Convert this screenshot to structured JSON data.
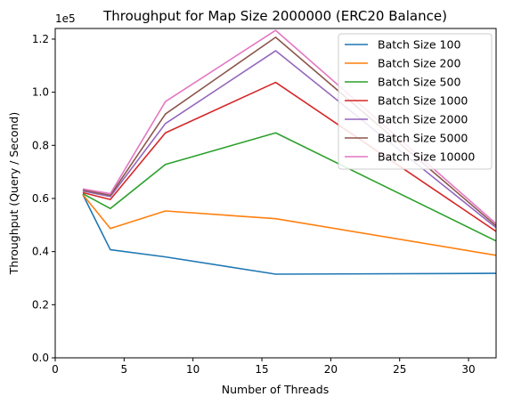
{
  "chart_data": {
    "type": "line",
    "title": "Throughput for Map Size 2000000 (ERC20 Balance)",
    "xlabel": "Number of Threads",
    "ylabel": "Throughput (Query / Second)",
    "y_offset_label": "1e5",
    "xlim": [
      0,
      32
    ],
    "ylim": [
      0,
      1.24
    ],
    "x_ticks": [
      "0",
      "5",
      "10",
      "15",
      "20",
      "25",
      "30"
    ],
    "y_ticks": [
      "0.0",
      "0.2",
      "0.4",
      "0.6",
      "0.8",
      "1.0",
      "1.2"
    ],
    "legend_position": "top-right",
    "grid": false,
    "x": [
      2,
      4,
      8,
      16,
      32
    ],
    "series": [
      {
        "name": "Batch Size 100",
        "color": "#1f77b4",
        "values": [
          0.615,
          0.407,
          0.38,
          0.315,
          0.318
        ]
      },
      {
        "name": "Batch Size 200",
        "color": "#ff7f0e",
        "values": [
          0.615,
          0.487,
          0.553,
          0.524,
          0.386
        ]
      },
      {
        "name": "Batch Size 500",
        "color": "#2ca02c",
        "values": [
          0.618,
          0.562,
          0.728,
          0.847,
          0.44
        ]
      },
      {
        "name": "Batch Size 1000",
        "color": "#d62728",
        "values": [
          0.622,
          0.596,
          0.847,
          1.037,
          0.476
        ]
      },
      {
        "name": "Batch Size 2000",
        "color": "#9467bd",
        "values": [
          0.628,
          0.607,
          0.882,
          1.156,
          0.49
        ]
      },
      {
        "name": "Batch Size 5000",
        "color": "#8c564b",
        "values": [
          0.632,
          0.612,
          0.918,
          1.207,
          0.497
        ]
      },
      {
        "name": "Batch Size 10000",
        "color": "#e377c2",
        "values": [
          0.636,
          0.618,
          0.965,
          1.233,
          0.505
        ]
      }
    ]
  }
}
